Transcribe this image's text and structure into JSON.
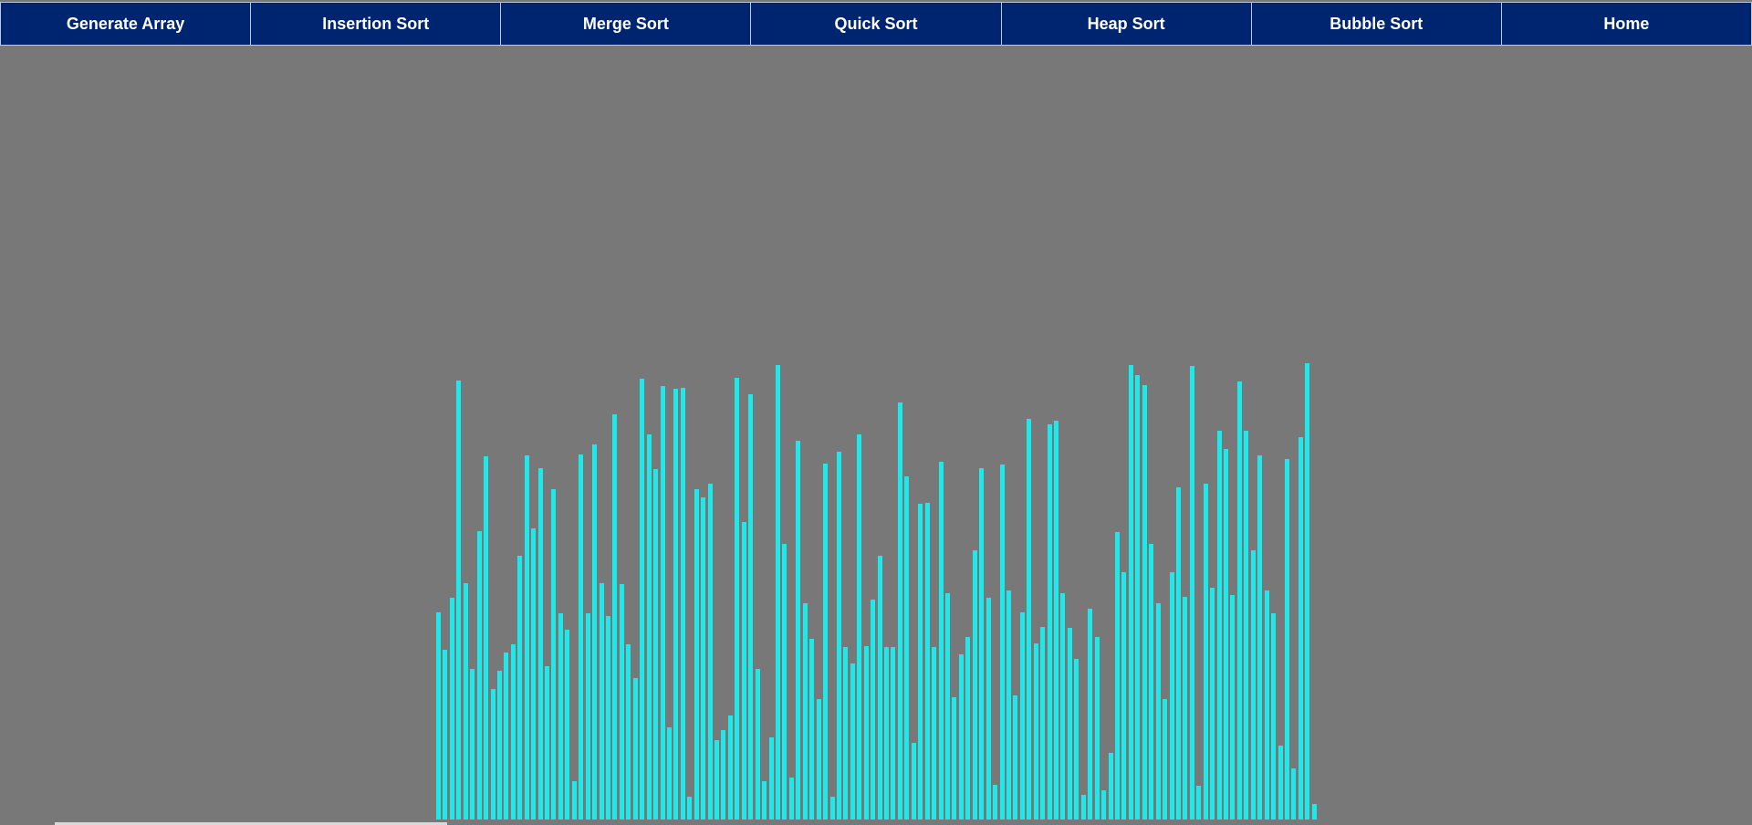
{
  "nav": {
    "items": [
      {
        "label": "Generate Array",
        "name": "generate-array-button"
      },
      {
        "label": "Insertion Sort",
        "name": "insertion-sort-button"
      },
      {
        "label": "Merge Sort",
        "name": "merge-sort-button"
      },
      {
        "label": "Quick Sort",
        "name": "quick-sort-button"
      },
      {
        "label": "Heap Sort",
        "name": "heap-sort-button"
      },
      {
        "label": "Bubble Sort",
        "name": "bubble-sort-button"
      },
      {
        "label": "Home",
        "name": "home-button"
      }
    ]
  },
  "colors": {
    "nav_background": "#002570",
    "nav_text": "#ffffff",
    "page_background": "#787878",
    "bar": "#1de9ea"
  },
  "array": {
    "values": [
      227,
      186,
      243,
      481,
      259,
      165,
      316,
      398,
      143,
      163,
      183,
      192,
      289,
      399,
      319,
      385,
      168,
      362,
      226,
      208,
      42,
      400,
      226,
      411,
      259,
      223,
      444,
      258,
      192,
      155,
      483,
      422,
      384,
      475,
      101,
      472,
      473,
      25,
      362,
      353,
      368,
      87,
      98,
      114,
      484,
      326,
      466,
      165,
      42,
      90,
      498,
      302,
      46,
      415,
      237,
      198,
      132,
      390,
      25,
      403,
      189,
      171,
      422,
      190,
      241,
      289,
      189,
      189,
      457,
      376,
      84,
      346,
      347,
      189,
      392,
      248,
      134,
      181,
      200,
      295,
      385,
      243,
      38,
      389,
      251,
      136,
      227,
      439,
      193,
      211,
      433,
      437,
      248,
      210,
      176,
      27,
      231,
      200,
      32,
      73,
      315,
      271,
      498,
      487,
      476,
      302,
      237,
      132,
      271,
      364,
      244,
      497,
      37,
      368,
      254,
      426,
      406,
      246,
      480,
      426,
      295,
      399,
      251,
      226,
      81,
      395,
      56,
      419,
      500,
      17
    ],
    "max": 500,
    "count": 130
  }
}
